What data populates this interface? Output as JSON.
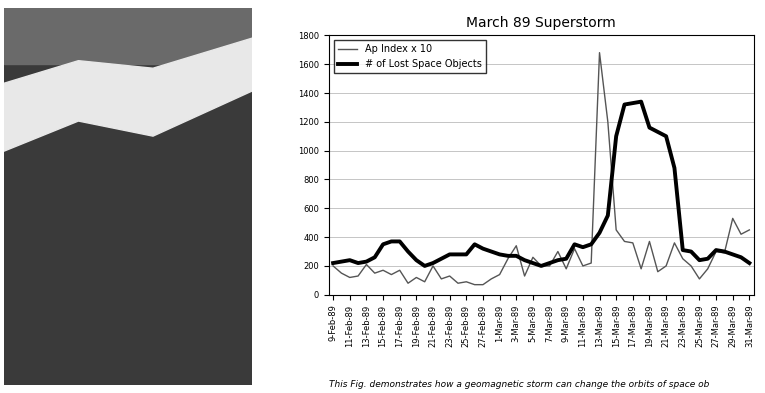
{
  "chart_data": {
    "type": "line",
    "title": "March 89 Superstorm",
    "categories": [
      "9-Feb-89",
      null,
      "11-Feb-89",
      null,
      "13-Feb-89",
      null,
      "15-Feb-89",
      null,
      "17-Feb-89",
      null,
      "19-Feb-89",
      null,
      "21-Feb-89",
      null,
      "23-Feb-89",
      null,
      "25-Feb-89",
      null,
      "27-Feb-89",
      null,
      "1-Mar-89",
      null,
      "3-Mar-89",
      null,
      "5-Mar-89",
      null,
      "7-Mar-89",
      null,
      "9-Mar-89",
      null,
      "11-Mar-89",
      null,
      "13-Mar-89",
      null,
      "15-Mar-89",
      null,
      "17-Mar-89",
      null,
      "19-Mar-89",
      null,
      "21-Mar-89",
      null,
      "23-Mar-89",
      null,
      "25-Mar-89",
      null,
      "27-Mar-89",
      null,
      "29-Mar-89",
      null,
      "31-Mar-89"
    ],
    "series": [
      {
        "name": "Ap Index x 10",
        "color": "#555555",
        "values": [
          200,
          150,
          120,
          130,
          210,
          150,
          170,
          140,
          170,
          80,
          120,
          90,
          200,
          110,
          130,
          80,
          90,
          70,
          70,
          110,
          140,
          250,
          340,
          130,
          260,
          200,
          200,
          300,
          180,
          320,
          200,
          220,
          1680,
          1200,
          450,
          370,
          360,
          180,
          370,
          160,
          200,
          360,
          250,
          200,
          110,
          180,
          300,
          290,
          530,
          420,
          450
        ]
      },
      {
        "name": "# of Lost Space Objects",
        "color": "#000000",
        "values": [
          220,
          230,
          240,
          220,
          230,
          260,
          350,
          370,
          370,
          300,
          240,
          200,
          220,
          250,
          280,
          280,
          280,
          350,
          320,
          300,
          280,
          270,
          270,
          240,
          220,
          200,
          220,
          240,
          250,
          350,
          330,
          350,
          430,
          550,
          1100,
          1320,
          1330,
          1340,
          1160,
          1130,
          1100,
          880,
          310,
          300,
          240,
          250,
          310,
          300,
          280,
          260,
          220
        ]
      }
    ],
    "ylim": [
      0,
      1800
    ],
    "yticks": [
      0,
      200,
      400,
      600,
      800,
      1000,
      1200,
      1400,
      1600,
      1800
    ],
    "grid": true,
    "legend": "upper left",
    "annotations": [
      "This Fig. demonstrates how a geomagnetic storm can change the orbits of space ob"
    ]
  }
}
